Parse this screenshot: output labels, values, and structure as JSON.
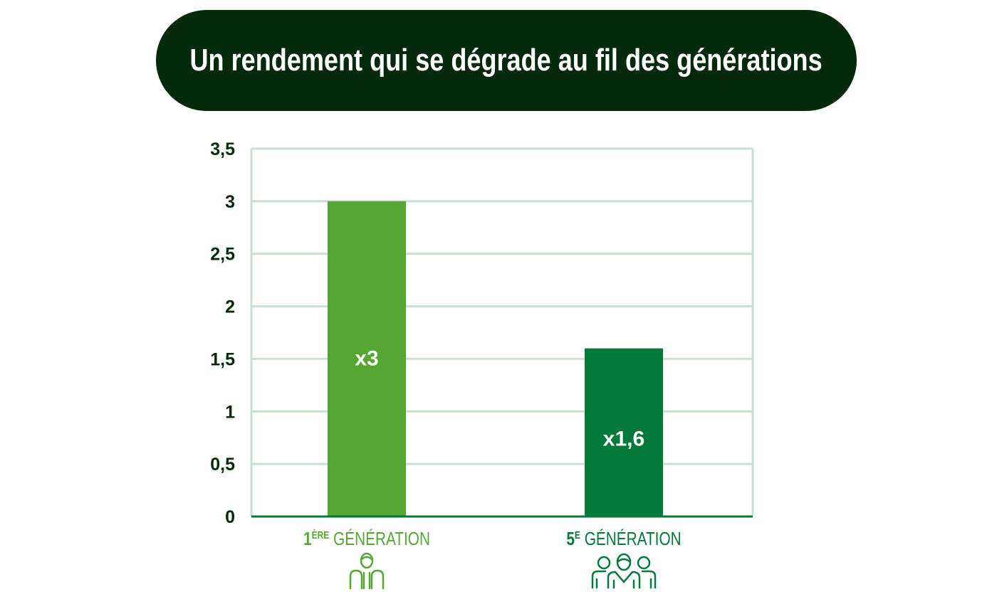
{
  "title": "Un rendement qui se dégrade au fil des générations",
  "chart_data": {
    "type": "bar",
    "title": "Un rendement qui se dégrade au fil des générations",
    "categories": [
      {
        "num": "1",
        "sup": "ÈRE",
        "rest": " GÉNÉRATION",
        "icon": "person-icon",
        "color": "#55a632"
      },
      {
        "num": "5",
        "sup": "E",
        "rest": " GÉNÉRATION",
        "icon": "group-icon",
        "color": "#047a3a"
      }
    ],
    "values": [
      3,
      1.6
    ],
    "data_labels": [
      "x3",
      "x1,6"
    ],
    "yticks": [
      "0",
      "0,5",
      "1",
      "1,5",
      "2",
      "2,5",
      "3",
      "3,5"
    ],
    "ylim": [
      0,
      3.5
    ],
    "grid": true,
    "xlabel": "",
    "ylabel": ""
  }
}
